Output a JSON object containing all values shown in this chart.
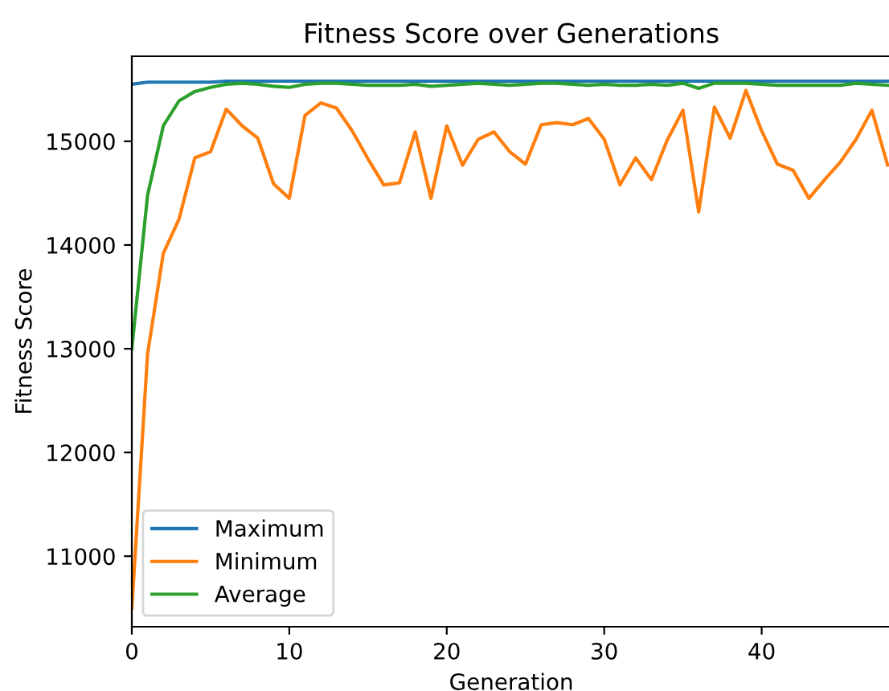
{
  "chart_data": {
    "type": "line",
    "title": "Fitness Score over Generations",
    "xlabel": "Generation",
    "ylabel": "Fitness Score",
    "x": [
      0,
      1,
      2,
      3,
      4,
      5,
      6,
      7,
      8,
      9,
      10,
      11,
      12,
      13,
      14,
      15,
      16,
      17,
      18,
      19,
      20,
      21,
      22,
      23,
      24,
      25,
      26,
      27,
      28,
      29,
      30,
      31,
      32,
      33,
      34,
      35,
      36,
      37,
      38,
      39,
      40,
      41,
      42,
      43,
      44,
      45,
      46,
      47,
      48
    ],
    "series": [
      {
        "name": "Maximum",
        "color": "#1f77b4",
        "values": [
          15550,
          15570,
          15570,
          15570,
          15570,
          15570,
          15580,
          15580,
          15580,
          15580,
          15580,
          15580,
          15580,
          15580,
          15580,
          15580,
          15580,
          15580,
          15580,
          15580,
          15580,
          15580,
          15580,
          15580,
          15580,
          15580,
          15580,
          15580,
          15580,
          15580,
          15580,
          15580,
          15580,
          15580,
          15580,
          15580,
          15580,
          15580,
          15580,
          15580,
          15580,
          15580,
          15580,
          15580,
          15580,
          15580,
          15580,
          15580,
          15580
        ]
      },
      {
        "name": "Minimum",
        "color": "#ff7f0e",
        "values": [
          10500,
          12950,
          13920,
          14250,
          14840,
          14900,
          15310,
          15150,
          15030,
          14590,
          14450,
          15250,
          15370,
          15320,
          15100,
          14830,
          14580,
          14600,
          15090,
          14450,
          15150,
          14770,
          15020,
          15090,
          14900,
          14780,
          15160,
          15180,
          15160,
          15220,
          15020,
          14580,
          14840,
          14630,
          15010,
          15300,
          14320,
          15330,
          15030,
          15490,
          15100,
          14780,
          14720,
          14450,
          14630,
          14800,
          15020,
          15300,
          14770
        ]
      },
      {
        "name": "Average",
        "color": "#2ca02c",
        "values": [
          13000,
          14480,
          15150,
          15390,
          15480,
          15520,
          15550,
          15560,
          15550,
          15530,
          15520,
          15550,
          15560,
          15560,
          15550,
          15540,
          15540,
          15540,
          15550,
          15530,
          15540,
          15550,
          15560,
          15550,
          15540,
          15550,
          15560,
          15560,
          15550,
          15540,
          15550,
          15540,
          15540,
          15550,
          15540,
          15560,
          15510,
          15560,
          15560,
          15560,
          15550,
          15540,
          15540,
          15540,
          15540,
          15540,
          15560,
          15550,
          15540
        ]
      }
    ],
    "xlim": [
      0,
      48.2
    ],
    "ylim": [
      10320,
      15820
    ],
    "xticks": [
      0,
      10,
      20,
      30,
      40
    ],
    "yticks": [
      11000,
      12000,
      13000,
      14000,
      15000
    ],
    "legend": "bottom left",
    "grid": false,
    "marker": "none",
    "line_style": "solid"
  }
}
